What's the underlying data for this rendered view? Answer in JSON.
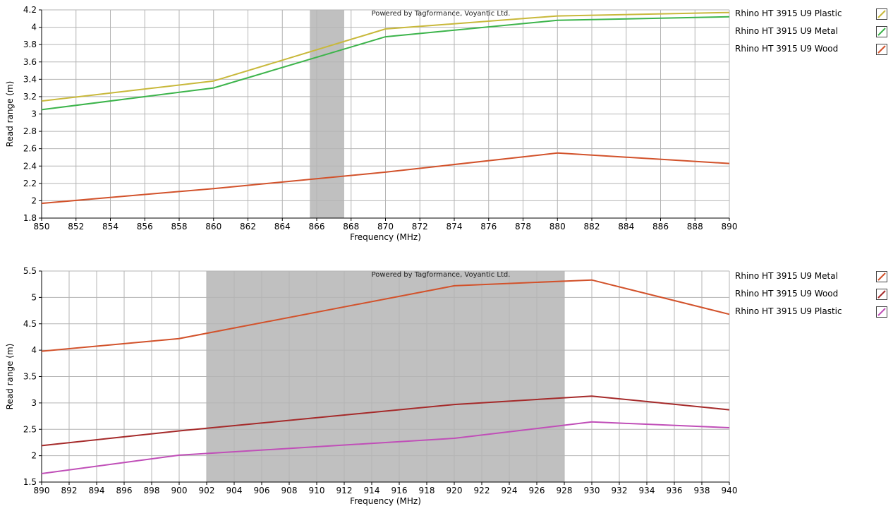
{
  "chart_data": [
    {
      "type": "line",
      "watermark": "Powered by Tagformance, Voyantic Ltd.",
      "xlabel": "Frequency (MHz)",
      "ylabel": "Read range (m)",
      "xlim": [
        850,
        890
      ],
      "ylim": [
        1.8,
        4.2
      ],
      "xticks": [
        "850",
        "852",
        "854",
        "856",
        "858",
        "860",
        "862",
        "864",
        "866",
        "868",
        "870",
        "872",
        "874",
        "876",
        "878",
        "880",
        "882",
        "884",
        "886",
        "888",
        "890"
      ],
      "yticks": [
        "1.8",
        "2",
        "2.2",
        "2.4",
        "2.6",
        "2.8",
        "3",
        "3.2",
        "3.4",
        "3.6",
        "3.8",
        "4",
        "4.2"
      ],
      "shaded_band": [
        865.6,
        867.6
      ],
      "grid": true,
      "legend_position": "right",
      "series": [
        {
          "name": "Rhino HT 3915 U9 Plastic",
          "color": "#c8b83a",
          "x": [
            850,
            860,
            870,
            880,
            890
          ],
          "y": [
            3.15,
            3.38,
            3.98,
            4.13,
            4.17
          ]
        },
        {
          "name": "Rhino HT 3915 U9 Metal",
          "color": "#3cb44b",
          "x": [
            850,
            860,
            870,
            880,
            890
          ],
          "y": [
            3.05,
            3.3,
            3.89,
            4.08,
            4.12
          ]
        },
        {
          "name": "Rhino HT 3915 U9 Wood",
          "color": "#d2522b",
          "x": [
            850,
            860,
            870,
            880,
            890
          ],
          "y": [
            1.97,
            2.14,
            2.33,
            2.55,
            2.43
          ]
        }
      ]
    },
    {
      "type": "line",
      "watermark": "Powered by Tagformance, Voyantic Ltd.",
      "xlabel": "Frequency (MHz)",
      "ylabel": "Read range (m)",
      "xlim": [
        890,
        940
      ],
      "ylim": [
        1.5,
        5.5
      ],
      "xticks": [
        "890",
        "892",
        "894",
        "896",
        "898",
        "900",
        "902",
        "904",
        "906",
        "908",
        "910",
        "912",
        "914",
        "916",
        "918",
        "920",
        "922",
        "924",
        "926",
        "928",
        "930",
        "932",
        "934",
        "936",
        "938",
        "940"
      ],
      "yticks": [
        "1.5",
        "2",
        "2.5",
        "3",
        "3.5",
        "4",
        "4.5",
        "5",
        "5.5"
      ],
      "shaded_band": [
        902,
        928
      ],
      "grid": true,
      "legend_position": "right",
      "series": [
        {
          "name": "Rhino HT 3915 U9 Metal",
          "color": "#d2522b",
          "x": [
            890,
            900,
            920,
            930,
            940
          ],
          "y": [
            3.98,
            4.22,
            5.22,
            5.33,
            4.68
          ]
        },
        {
          "name": "Rhino HT 3915 U9 Wood",
          "color": "#a52a2a",
          "x": [
            890,
            900,
            920,
            930,
            940
          ],
          "y": [
            2.19,
            2.47,
            2.97,
            3.13,
            2.87
          ]
        },
        {
          "name": "Rhino HT 3915 U9 Plastic",
          "color": "#c04fb8",
          "x": [
            890,
            900,
            920,
            930,
            940
          ],
          "y": [
            1.66,
            2.01,
            2.33,
            2.64,
            2.53
          ]
        }
      ]
    }
  ]
}
